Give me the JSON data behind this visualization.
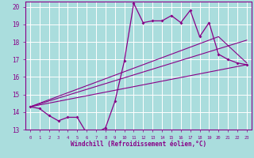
{
  "xlabel": "Windchill (Refroidissement éolien,°C)",
  "xlim": [
    -0.5,
    23.5
  ],
  "ylim": [
    13,
    20.3
  ],
  "yticks": [
    13,
    14,
    15,
    16,
    17,
    18,
    19,
    20
  ],
  "xticks": [
    0,
    1,
    2,
    3,
    4,
    5,
    6,
    7,
    8,
    9,
    10,
    11,
    12,
    13,
    14,
    15,
    16,
    17,
    18,
    19,
    20,
    21,
    22,
    23
  ],
  "background_color": "#aadddd",
  "grid_color": "#ffffff",
  "line_color": "#880088",
  "main_x": [
    0,
    1,
    2,
    3,
    4,
    5,
    6,
    7,
    8,
    9,
    10,
    11,
    12,
    13,
    14,
    15,
    16,
    17,
    18,
    19,
    20,
    21,
    22,
    23
  ],
  "main_y": [
    14.3,
    14.2,
    13.8,
    13.5,
    13.7,
    13.7,
    12.8,
    12.8,
    13.1,
    14.6,
    16.9,
    20.2,
    19.1,
    19.2,
    19.2,
    19.5,
    19.1,
    19.8,
    18.3,
    19.1,
    17.3,
    17.0,
    16.8,
    16.7
  ],
  "trend1_x": [
    0,
    23
  ],
  "trend1_y": [
    14.3,
    16.7
  ],
  "trend2_x": [
    0,
    20,
    23
  ],
  "trend2_y": [
    14.3,
    18.3,
    16.8
  ],
  "trend3_x": [
    0,
    23
  ],
  "trend3_y": [
    14.3,
    18.1
  ]
}
